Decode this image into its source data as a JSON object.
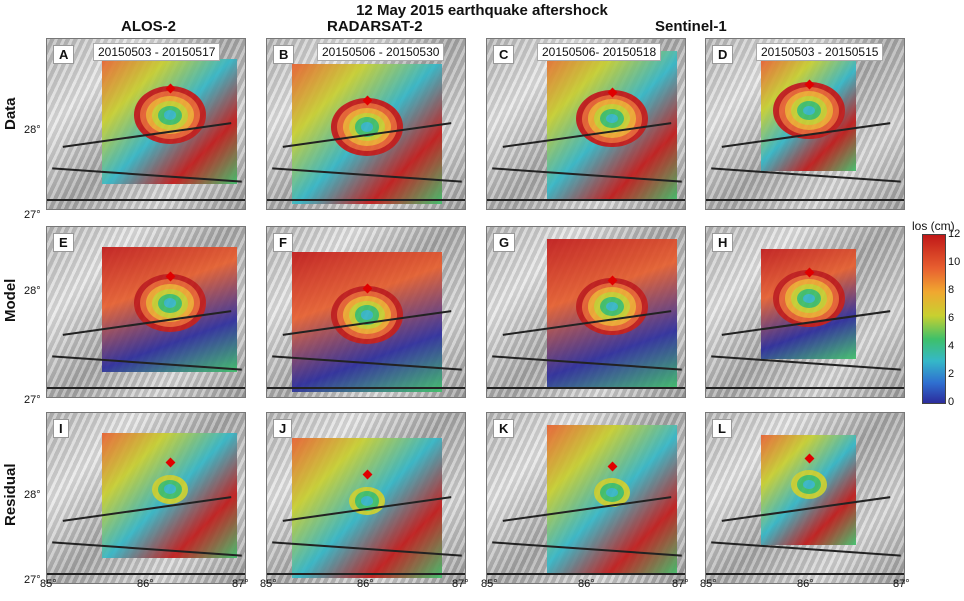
{
  "title": "12 May 2015 earthquake aftershock",
  "columns": [
    "ALOS-2",
    "RADARSAT-2",
    "Sentinel-1"
  ],
  "rows": [
    "Data",
    "Model",
    "Residual"
  ],
  "panels": [
    {
      "letter": "A",
      "dates": "20150503 - 20150517"
    },
    {
      "letter": "B",
      "dates": "20150506 - 20150530"
    },
    {
      "letter": "C",
      "dates": "20150506- 20150518"
    },
    {
      "letter": "D",
      "dates": "20150503 - 20150515"
    },
    {
      "letter": "E",
      "dates": ""
    },
    {
      "letter": "F",
      "dates": ""
    },
    {
      "letter": "G",
      "dates": ""
    },
    {
      "letter": "H",
      "dates": ""
    },
    {
      "letter": "I",
      "dates": ""
    },
    {
      "letter": "J",
      "dates": ""
    },
    {
      "letter": "K",
      "dates": ""
    },
    {
      "letter": "L",
      "dates": ""
    }
  ],
  "yticks": [
    "28°",
    "27°"
  ],
  "xticks": [
    "85°",
    "86°",
    "87°"
  ],
  "colorbar": {
    "label": "los (cm)",
    "ticks": [
      "12",
      "10",
      "8",
      "6",
      "4",
      "2",
      "0"
    ],
    "colors": [
      "#2c2c9c",
      "#35b8c8",
      "#3ec06a",
      "#c8d030",
      "#f0a830",
      "#e86030",
      "#c01818"
    ]
  }
}
